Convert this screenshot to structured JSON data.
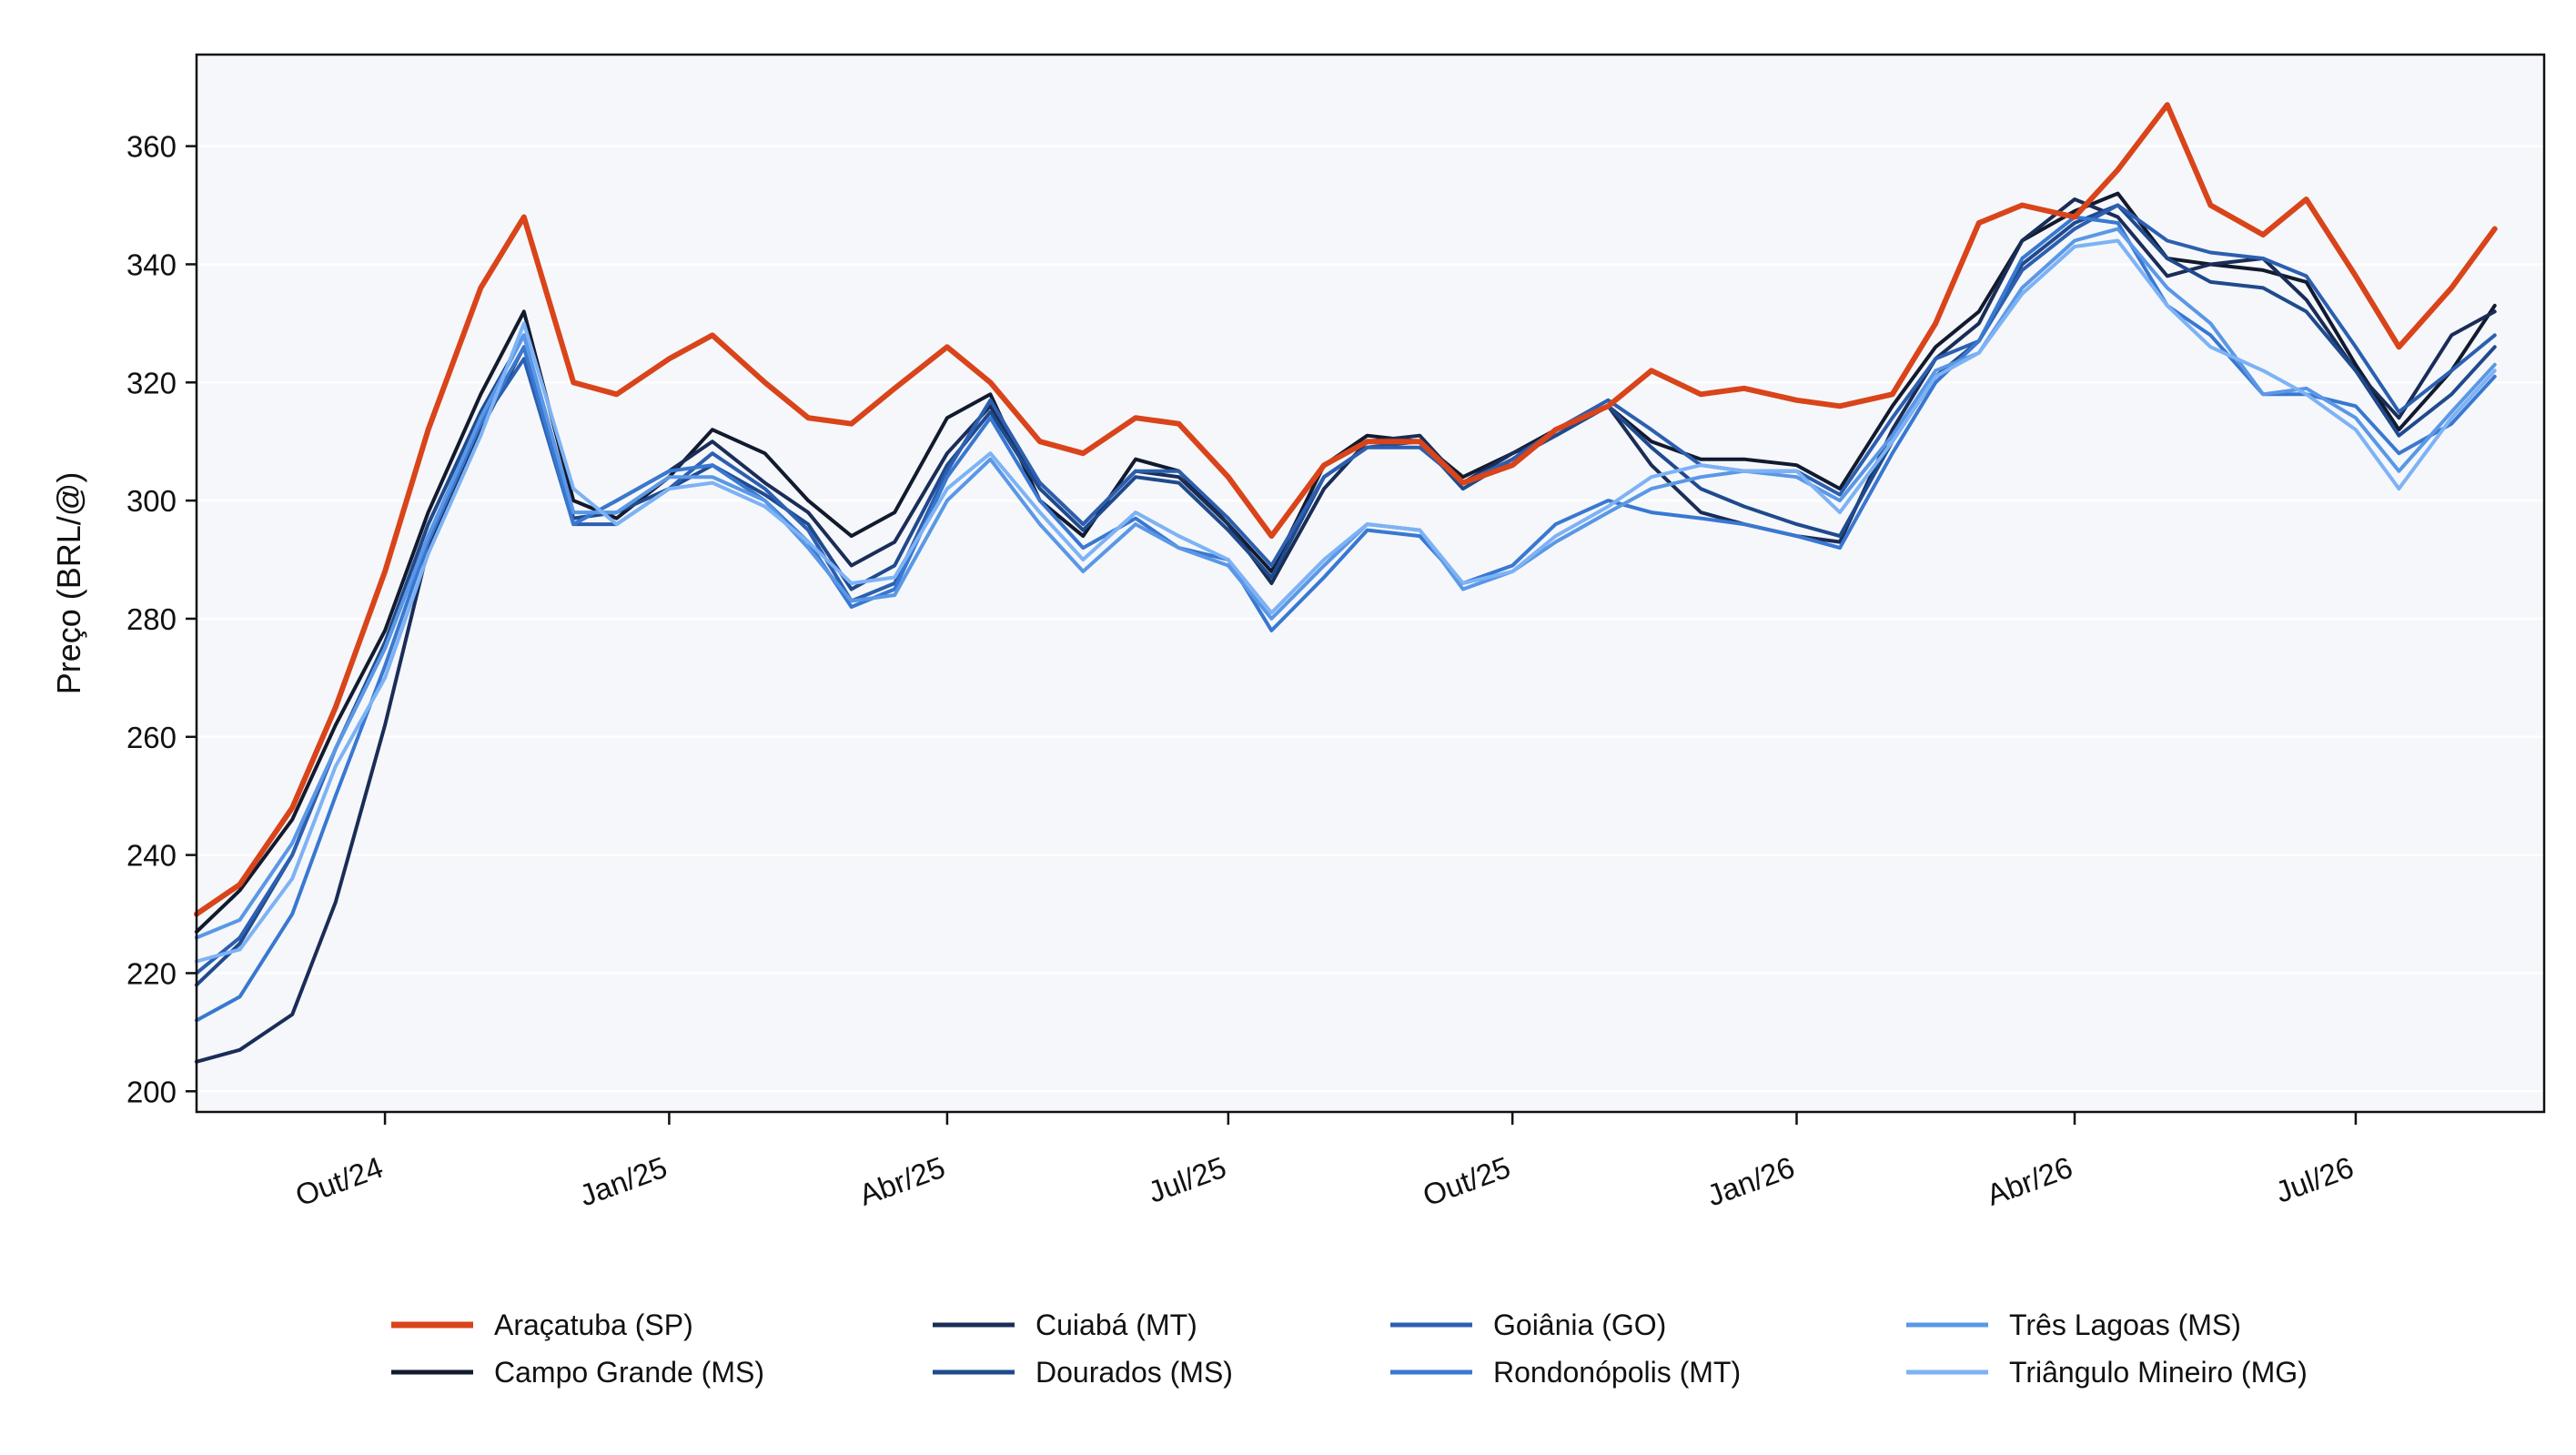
{
  "chart_data": {
    "type": "line",
    "title": "",
    "xlabel": "",
    "ylabel": "Preço (BRL/@)",
    "x_range": [
      "2024-08-01",
      "2026-08-31"
    ],
    "ylim": [
      196.5,
      375.5
    ],
    "yticks": [
      200,
      220,
      240,
      260,
      280,
      300,
      320,
      340,
      360
    ],
    "xticks": [
      {
        "date": "2024-10-01",
        "label": "Out/24"
      },
      {
        "date": "2025-01-01",
        "label": "Jan/25"
      },
      {
        "date": "2025-04-01",
        "label": "Abr/25"
      },
      {
        "date": "2025-07-01",
        "label": "Jul/25"
      },
      {
        "date": "2025-10-01",
        "label": "Out/25"
      },
      {
        "date": "2026-01-01",
        "label": "Jan/26"
      },
      {
        "date": "2026-04-01",
        "label": "Abr/26"
      },
      {
        "date": "2026-07-01",
        "label": "Jul/26"
      }
    ],
    "grid": "horizontal",
    "legend_position": "bottom",
    "x": [
      "2024-08-01",
      "2024-08-15",
      "2024-09-01",
      "2024-09-15",
      "2024-10-01",
      "2024-10-15",
      "2024-11-01",
      "2024-11-15",
      "2024-12-01",
      "2024-12-15",
      "2025-01-01",
      "2025-01-15",
      "2025-02-01",
      "2025-02-15",
      "2025-03-01",
      "2025-03-15",
      "2025-04-01",
      "2025-04-15",
      "2025-05-01",
      "2025-05-15",
      "2025-06-01",
      "2025-06-15",
      "2025-07-01",
      "2025-07-15",
      "2025-08-01",
      "2025-08-15",
      "2025-09-01",
      "2025-09-15",
      "2025-10-01",
      "2025-10-15",
      "2025-11-01",
      "2025-11-15",
      "2025-12-01",
      "2025-12-15",
      "2026-01-01",
      "2026-01-15",
      "2026-02-01",
      "2026-02-15",
      "2026-03-01",
      "2026-03-15",
      "2026-04-01",
      "2026-04-15",
      "2026-05-01",
      "2026-05-15",
      "2026-06-01",
      "2026-06-15",
      "2026-07-01",
      "2026-07-15",
      "2026-08-01",
      "2026-08-15"
    ],
    "series": [
      {
        "name": "Araçatuba (SP)",
        "color": "#d9441a",
        "width": 6,
        "values": [
          230,
          235,
          248,
          265,
          288,
          312,
          336,
          348,
          320,
          318,
          324,
          328,
          320,
          314,
          313,
          319,
          326,
          320,
          310,
          308,
          314,
          313,
          304,
          294,
          306,
          310,
          310,
          303,
          306,
          312,
          316,
          322,
          318,
          319,
          317,
          316,
          318,
          330,
          347,
          350,
          348,
          356,
          367,
          350,
          345,
          351,
          338,
          326,
          336,
          346
        ]
      },
      {
        "name": "Campo Grande (MS)",
        "color": "#121a2e",
        "width": 4,
        "values": [
          227,
          234,
          246,
          262,
          278,
          298,
          318,
          332,
          300,
          297,
          304,
          312,
          308,
          300,
          294,
          298,
          314,
          318,
          300,
          294,
          307,
          305,
          296,
          288,
          306,
          311,
          310,
          304,
          308,
          312,
          316,
          310,
          307,
          307,
          306,
          302,
          316,
          326,
          332,
          344,
          349,
          352,
          341,
          340,
          339,
          337,
          323,
          312,
          322,
          333
        ]
      },
      {
        "name": "Cuiabá (MT)",
        "color": "#1a2d57",
        "width": 4,
        "values": [
          205,
          207,
          213,
          232,
          262,
          292,
          312,
          326,
          296,
          300,
          305,
          310,
          303,
          298,
          289,
          293,
          308,
          316,
          303,
          296,
          305,
          304,
          296,
          286,
          302,
          310,
          311,
          303,
          308,
          311,
          316,
          306,
          298,
          296,
          294,
          293,
          312,
          324,
          330,
          344,
          351,
          348,
          338,
          340,
          341,
          334,
          322,
          314,
          328,
          332
        ]
      },
      {
        "name": "Dourados (MS)",
        "color": "#1f4a8d",
        "width": 4,
        "values": [
          218,
          225,
          240,
          258,
          276,
          296,
          315,
          328,
          297,
          298,
          302,
          306,
          301,
          296,
          285,
          289,
          306,
          315,
          302,
          295,
          304,
          303,
          295,
          287,
          304,
          309,
          310,
          302,
          307,
          311,
          316,
          309,
          302,
          299,
          296,
          294,
          310,
          321,
          327,
          340,
          347,
          350,
          341,
          337,
          336,
          332,
          322,
          311,
          318,
          326
        ]
      },
      {
        "name": "Goiânia (GO)",
        "color": "#2c5fb0",
        "width": 4,
        "values": [
          220,
          226,
          240,
          258,
          275,
          294,
          313,
          324,
          296,
          296,
          302,
          308,
          302,
          295,
          283,
          286,
          305,
          317,
          303,
          296,
          305,
          305,
          297,
          289,
          304,
          309,
          309,
          303,
          307,
          312,
          317,
          312,
          306,
          305,
          305,
          301,
          314,
          324,
          327,
          339,
          346,
          350,
          344,
          342,
          341,
          338,
          326,
          315,
          322,
          328
        ]
      },
      {
        "name": "Rondonópolis (MT)",
        "color": "#3978d1",
        "width": 4,
        "values": [
          212,
          216,
          230,
          250,
          272,
          293,
          313,
          326,
          296,
          300,
          305,
          306,
          300,
          293,
          282,
          285,
          304,
          314,
          300,
          292,
          297,
          292,
          290,
          278,
          287,
          295,
          294,
          286,
          289,
          296,
          300,
          298,
          297,
          296,
          294,
          292,
          308,
          320,
          327,
          341,
          348,
          347,
          333,
          328,
          318,
          318,
          316,
          308,
          313,
          321
        ]
      },
      {
        "name": "Três Lagoas (MS)",
        "color": "#5a97e6",
        "width": 4,
        "values": [
          226,
          229,
          242,
          258,
          275,
          294,
          314,
          328,
          298,
          298,
          304,
          304,
          300,
          292,
          283,
          284,
          300,
          307,
          296,
          288,
          296,
          292,
          289,
          280,
          289,
          296,
          295,
          285,
          288,
          293,
          298,
          302,
          304,
          305,
          304,
          300,
          311,
          322,
          325,
          336,
          344,
          346,
          336,
          330,
          318,
          319,
          314,
          305,
          315,
          323
        ]
      },
      {
        "name": "Triângulo Mineiro (MG)",
        "color": "#7db2f5",
        "width": 4,
        "values": [
          222,
          224,
          236,
          255,
          270,
          291,
          311,
          330,
          302,
          296,
          302,
          303,
          299,
          293,
          286,
          287,
          302,
          308,
          298,
          290,
          298,
          294,
          290,
          281,
          290,
          296,
          295,
          286,
          288,
          294,
          299,
          304,
          306,
          305,
          305,
          298,
          310,
          321,
          325,
          335,
          343,
          344,
          333,
          326,
          322,
          318,
          312,
          302,
          314,
          322
        ]
      }
    ]
  }
}
